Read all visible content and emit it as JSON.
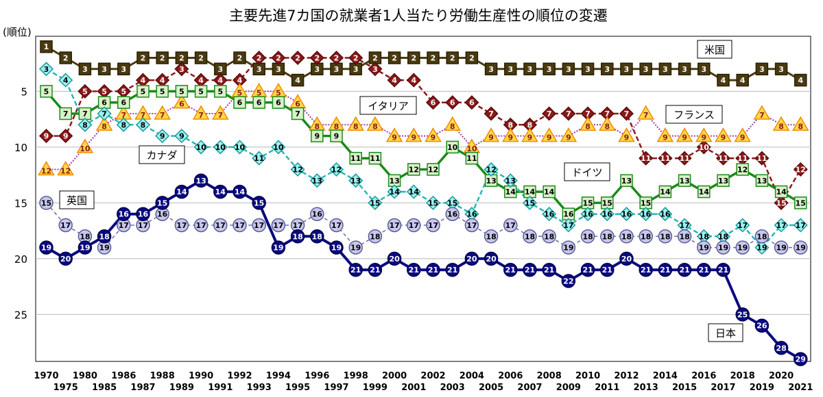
{
  "chart_data": {
    "type": "line",
    "title": "主要先進7カ国の就業者1人当たり労働生産性の順位の変遷",
    "ylabel": "(順位)",
    "ylim": [
      1,
      29
    ],
    "y_reversed": true,
    "yticks": [
      5,
      10,
      15,
      20,
      25
    ],
    "grid": true,
    "x": [
      1970,
      1975,
      1980,
      1985,
      1986,
      1987,
      1988,
      1989,
      1990,
      1991,
      1992,
      1993,
      1994,
      1995,
      1996,
      1997,
      1998,
      1999,
      2000,
      2001,
      2002,
      2003,
      2004,
      2005,
      2006,
      2007,
      2008,
      2009,
      2010,
      2011,
      2012,
      2013,
      2014,
      2015,
      2016,
      2017,
      2018,
      2019,
      2020,
      2021
    ],
    "series": [
      {
        "name": "米国",
        "color": "#4a3a10",
        "marker": "square",
        "values": [
          1,
          2,
          3,
          3,
          3,
          2,
          2,
          2,
          2,
          3,
          2,
          3,
          3,
          4,
          3,
          3,
          3,
          2,
          2,
          2,
          2,
          2,
          2,
          3,
          3,
          3,
          3,
          3,
          3,
          3,
          3,
          3,
          3,
          3,
          3,
          4,
          4,
          3,
          3,
          4
        ]
      },
      {
        "name": "イタリア",
        "color": "#8b1a1a",
        "marker": "diamond",
        "values": [
          9,
          9,
          5,
          5,
          5,
          4,
          4,
          3,
          4,
          4,
          4,
          2,
          2,
          2,
          2,
          2,
          2,
          3,
          4,
          4,
          6,
          6,
          6,
          7,
          8,
          8,
          7,
          7,
          7,
          7,
          7,
          11,
          11,
          11,
          10,
          11,
          11,
          11,
          15,
          12
        ]
      },
      {
        "name": "フランス",
        "color": "#f5a623",
        "marker": "triangle",
        "values": [
          12,
          12,
          10,
          8,
          7,
          7,
          7,
          6,
          7,
          7,
          5,
          5,
          5,
          6,
          8,
          8,
          8,
          8,
          9,
          9,
          9,
          8,
          10,
          9,
          9,
          9,
          9,
          9,
          8,
          8,
          9,
          7,
          9,
          9,
          9,
          9,
          9,
          7,
          8,
          8
        ]
      },
      {
        "name": "ドイツ",
        "color": "#1a8a1a",
        "marker": "square",
        "values": [
          5,
          7,
          7,
          6,
          6,
          5,
          5,
          5,
          5,
          5,
          6,
          6,
          6,
          7,
          9,
          9,
          11,
          11,
          13,
          12,
          12,
          10,
          11,
          13,
          14,
          14,
          14,
          16,
          15,
          15,
          13,
          15,
          14,
          13,
          14,
          13,
          12,
          13,
          14,
          15
        ]
      },
      {
        "name": "カナダ",
        "color": "#2ab5b5",
        "marker": "diamond",
        "values": [
          3,
          4,
          8,
          7,
          8,
          8,
          9,
          9,
          10,
          10,
          10,
          11,
          10,
          12,
          13,
          12,
          13,
          15,
          14,
          14,
          15,
          15,
          16,
          12,
          13,
          15,
          16,
          17,
          16,
          16,
          16,
          16,
          16,
          17,
          18,
          18,
          17,
          19,
          17,
          17
        ]
      },
      {
        "name": "英国",
        "color": "#6a6aa8",
        "marker": "circle",
        "values": [
          15,
          17,
          18,
          19,
          17,
          17,
          16,
          17,
          17,
          17,
          17,
          17,
          17,
          17,
          16,
          17,
          19,
          18,
          17,
          17,
          17,
          16,
          17,
          18,
          17,
          18,
          18,
          19,
          18,
          18,
          18,
          18,
          18,
          18,
          19,
          19,
          19,
          18,
          19,
          19
        ]
      },
      {
        "name": "日本",
        "color": "#0a0a80",
        "marker": "circle",
        "values": [
          19,
          20,
          19,
          18,
          16,
          16,
          15,
          14,
          13,
          14,
          14,
          15,
          19,
          18,
          18,
          19,
          21,
          21,
          20,
          21,
          21,
          21,
          20,
          20,
          21,
          21,
          21,
          22,
          21,
          21,
          20,
          21,
          21,
          21,
          21,
          21,
          25,
          26,
          28,
          29
        ]
      }
    ]
  }
}
